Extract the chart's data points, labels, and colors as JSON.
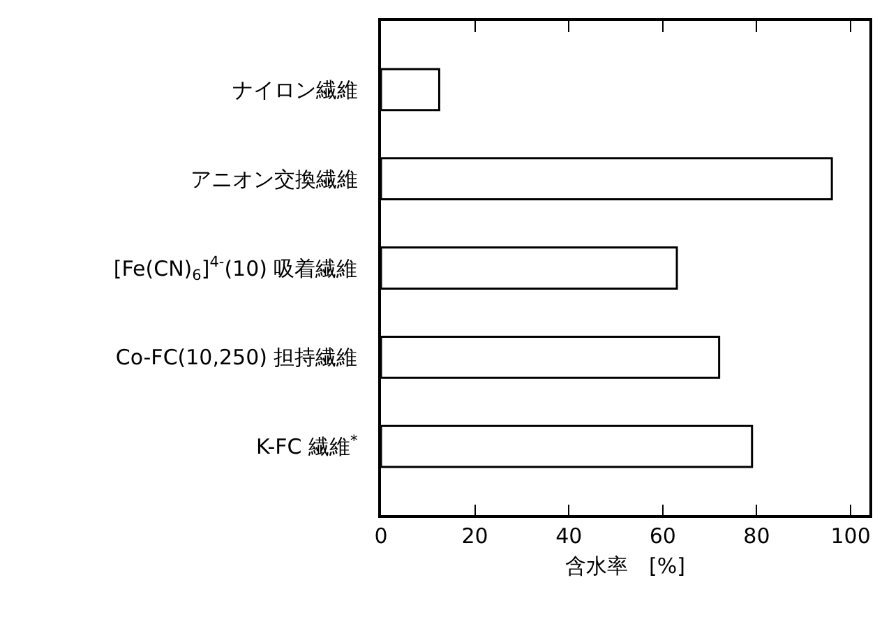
{
  "chart_data": {
    "type": "bar",
    "orientation": "horizontal",
    "xlabel": "含水率　[%]",
    "categories": [
      "ナイロン繊維",
      "アニオン交換繊維",
      "[Fe(CN)$_{6}$]$^{4-}$(10) 吸着繊維",
      "Co-FC(10,250) 担持繊維",
      "K-FC 繊維$^{*}$"
    ],
    "values": [
      12.4,
      96,
      63,
      72,
      79
    ],
    "color": "#ffffff",
    "xlim": [
      0,
      104
    ],
    "xticks": [
      0,
      20,
      40,
      60,
      80,
      100
    ]
  }
}
